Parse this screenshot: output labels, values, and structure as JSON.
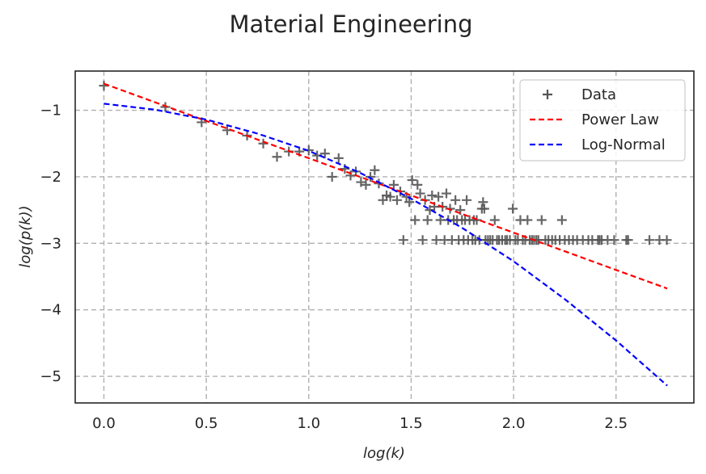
{
  "chart_data": {
    "type": "scatter",
    "title": "Material Engineering",
    "xlabel": "log(k)",
    "ylabel": "log(p(k))",
    "xlim": [
      -0.14,
      2.88
    ],
    "ylim": [
      -5.4,
      -0.41
    ],
    "xticks": [
      0.0,
      0.5,
      1.0,
      1.5,
      2.0,
      2.5
    ],
    "xtick_labels": [
      "0.0",
      "0.5",
      "1.0",
      "1.5",
      "2.0",
      "2.5"
    ],
    "yticks": [
      -1,
      -2,
      -3,
      -4,
      -5
    ],
    "ytick_labels": [
      "−1",
      "−2",
      "−3",
      "−4",
      "−5"
    ],
    "grid": true,
    "legend_position": "top-right",
    "series": [
      {
        "name": "Data",
        "kind": "scatter",
        "marker": "+",
        "color": "#555555",
        "points": [
          [
            0.0,
            -0.63
          ],
          [
            0.3,
            -0.95
          ],
          [
            0.477,
            -1.18
          ],
          [
            0.602,
            -1.3
          ],
          [
            0.699,
            -1.38
          ],
          [
            0.778,
            -1.5
          ],
          [
            0.845,
            -1.7
          ],
          [
            0.903,
            -1.62
          ],
          [
            0.954,
            -1.62
          ],
          [
            1.0,
            -1.6
          ],
          [
            1.041,
            -1.68
          ],
          [
            1.079,
            -1.65
          ],
          [
            1.114,
            -2.0
          ],
          [
            1.146,
            -1.72
          ],
          [
            1.176,
            -1.88
          ],
          [
            1.204,
            -1.98
          ],
          [
            1.23,
            -1.92
          ],
          [
            1.255,
            -2.08
          ],
          [
            1.279,
            -2.12
          ],
          [
            1.301,
            -2.0
          ],
          [
            1.322,
            -1.9
          ],
          [
            1.342,
            -2.1
          ],
          [
            1.362,
            -2.35
          ],
          [
            1.38,
            -2.28
          ],
          [
            1.398,
            -2.3
          ],
          [
            1.415,
            -2.12
          ],
          [
            1.431,
            -2.35
          ],
          [
            1.447,
            -2.22
          ],
          [
            1.462,
            -2.95
          ],
          [
            1.477,
            -2.3
          ],
          [
            1.491,
            -2.38
          ],
          [
            1.505,
            -2.05
          ],
          [
            1.519,
            -2.65
          ],
          [
            1.531,
            -2.12
          ],
          [
            1.544,
            -2.25
          ],
          [
            1.556,
            -2.95
          ],
          [
            1.568,
            -2.35
          ],
          [
            1.58,
            -2.65
          ],
          [
            1.591,
            -2.5
          ],
          [
            1.602,
            -2.28
          ],
          [
            1.613,
            -2.45
          ],
          [
            1.623,
            -2.95
          ],
          [
            1.633,
            -2.3
          ],
          [
            1.643,
            -2.65
          ],
          [
            1.653,
            -2.45
          ],
          [
            1.663,
            -2.95
          ],
          [
            1.672,
            -2.25
          ],
          [
            1.681,
            -2.65
          ],
          [
            1.69,
            -2.48
          ],
          [
            1.699,
            -2.95
          ],
          [
            1.708,
            -2.65
          ],
          [
            1.716,
            -2.35
          ],
          [
            1.724,
            -2.65
          ],
          [
            1.732,
            -2.95
          ],
          [
            1.74,
            -2.5
          ],
          [
            1.748,
            -2.65
          ],
          [
            1.756,
            -2.95
          ],
          [
            1.763,
            -2.65
          ],
          [
            1.771,
            -2.35
          ],
          [
            1.778,
            -2.95
          ],
          [
            1.785,
            -2.65
          ],
          [
            1.799,
            -2.95
          ],
          [
            1.806,
            -2.65
          ],
          [
            1.813,
            -2.95
          ],
          [
            1.82,
            -2.65
          ],
          [
            1.833,
            -2.95
          ],
          [
            1.845,
            -2.48
          ],
          [
            1.851,
            -2.38
          ],
          [
            1.857,
            -2.48
          ],
          [
            1.863,
            -2.95
          ],
          [
            1.875,
            -2.95
          ],
          [
            1.886,
            -2.95
          ],
          [
            1.898,
            -2.95
          ],
          [
            1.908,
            -2.65
          ],
          [
            1.919,
            -2.95
          ],
          [
            1.929,
            -2.95
          ],
          [
            1.944,
            -2.95
          ],
          [
            1.959,
            -2.95
          ],
          [
            1.968,
            -2.95
          ],
          [
            1.982,
            -2.95
          ],
          [
            1.996,
            -2.48
          ],
          [
            2.009,
            -2.95
          ],
          [
            2.021,
            -2.95
          ],
          [
            2.033,
            -2.65
          ],
          [
            2.045,
            -2.95
          ],
          [
            2.057,
            -2.95
          ],
          [
            2.068,
            -2.65
          ],
          [
            2.079,
            -2.95
          ],
          [
            2.09,
            -2.95
          ],
          [
            2.1,
            -2.95
          ],
          [
            2.111,
            -2.95
          ],
          [
            2.121,
            -2.95
          ],
          [
            2.137,
            -2.65
          ],
          [
            2.155,
            -2.95
          ],
          [
            2.17,
            -2.95
          ],
          [
            2.188,
            -2.95
          ],
          [
            2.204,
            -2.95
          ],
          [
            2.225,
            -2.95
          ],
          [
            2.236,
            -2.65
          ],
          [
            2.25,
            -2.95
          ],
          [
            2.27,
            -2.95
          ],
          [
            2.29,
            -2.95
          ],
          [
            2.31,
            -2.95
          ],
          [
            2.338,
            -2.95
          ],
          [
            2.365,
            -2.95
          ],
          [
            2.384,
            -2.95
          ],
          [
            2.412,
            -2.95
          ],
          [
            2.42,
            -2.95
          ],
          [
            2.43,
            -2.95
          ],
          [
            2.459,
            -2.95
          ],
          [
            2.491,
            -2.95
          ],
          [
            2.55,
            -2.95
          ],
          [
            2.559,
            -2.95
          ],
          [
            2.663,
            -2.95
          ],
          [
            2.712,
            -2.95
          ],
          [
            2.748,
            -2.95
          ]
        ]
      },
      {
        "name": "Power Law",
        "kind": "line",
        "style": "dashed",
        "color": "#ff0000",
        "x": [
          0.0,
          0.25,
          0.5,
          0.75,
          1.0,
          1.25,
          1.5,
          1.75,
          2.0,
          2.25,
          2.5,
          2.75
        ],
        "y": [
          -0.6,
          -0.88,
          -1.16,
          -1.44,
          -1.72,
          -2.0,
          -2.28,
          -2.56,
          -2.84,
          -3.12,
          -3.4,
          -3.68
        ]
      },
      {
        "name": "Log-Normal",
        "kind": "line",
        "style": "dashed",
        "color": "#0000ff",
        "x": [
          0.0,
          0.25,
          0.5,
          0.75,
          1.0,
          1.25,
          1.5,
          1.75,
          2.0,
          2.25,
          2.5,
          2.75
        ],
        "y": [
          -0.9,
          -0.99,
          -1.14,
          -1.35,
          -1.61,
          -1.94,
          -2.33,
          -2.77,
          -3.27,
          -3.84,
          -4.46,
          -5.14
        ]
      }
    ]
  }
}
